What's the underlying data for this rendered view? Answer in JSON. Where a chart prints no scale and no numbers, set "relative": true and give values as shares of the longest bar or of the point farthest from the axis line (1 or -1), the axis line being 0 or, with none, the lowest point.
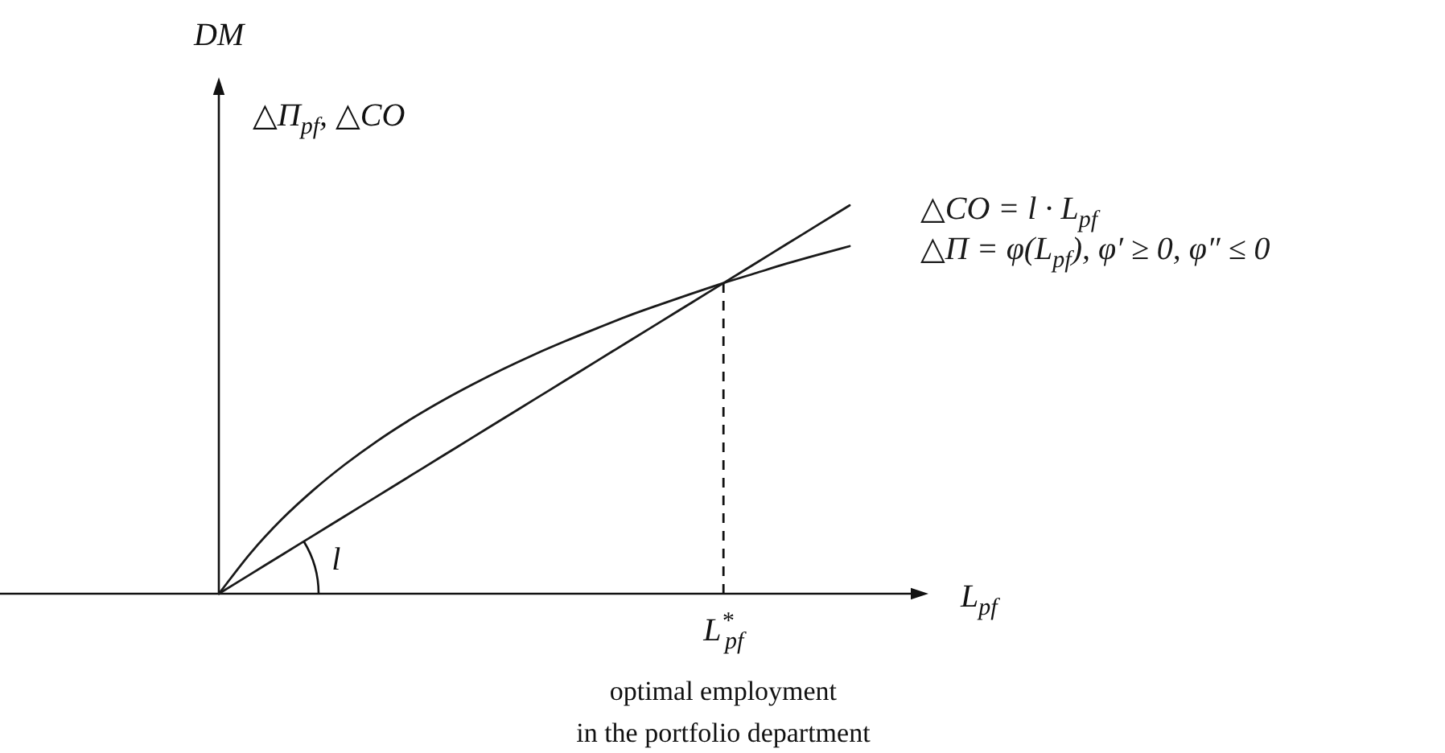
{
  "chart_data": {
    "type": "line",
    "relative": true,
    "ylabel": "DM",
    "xlabel": "L$_{pf}$",
    "categories": [
      null,
      null,
      null,
      null,
      null,
      null,
      null,
      null,
      null,
      null,
      null,
      null,
      null,
      null,
      null,
      null,
      null,
      null,
      null,
      null,
      null
    ],
    "series": [
      {
        "name": "△CO = l · L$_{pf}$",
        "color": "#1a1a1a",
        "values": [
          0,
          0.05,
          0.1,
          0.15,
          0.2,
          0.25,
          0.3,
          0.35,
          0.4,
          0.45,
          0.5,
          0.55,
          0.6,
          0.65,
          0.7,
          0.75,
          0.8,
          0.85,
          0.9,
          0.95,
          1
        ]
      },
      {
        "name": "△Π = φ(L$_{pf}$), φ′ ≥ 0, φ″ ≤ 0",
        "color": "#1a1a1a",
        "values": [
          0,
          0.104,
          0.192,
          0.267,
          0.333,
          0.392,
          0.445,
          0.493,
          0.537,
          0.578,
          0.616,
          0.651,
          0.684,
          0.716,
          0.745,
          0.773,
          0.8,
          0.825,
          0.85,
          0.873,
          0.895
        ]
      }
    ],
    "annotations": [
      "△Π$_{pf}$, △CO",
      "l",
      "L$^{*}$$_{pf}$",
      "optimal employment\nin the portfolio department"
    ]
  }
}
